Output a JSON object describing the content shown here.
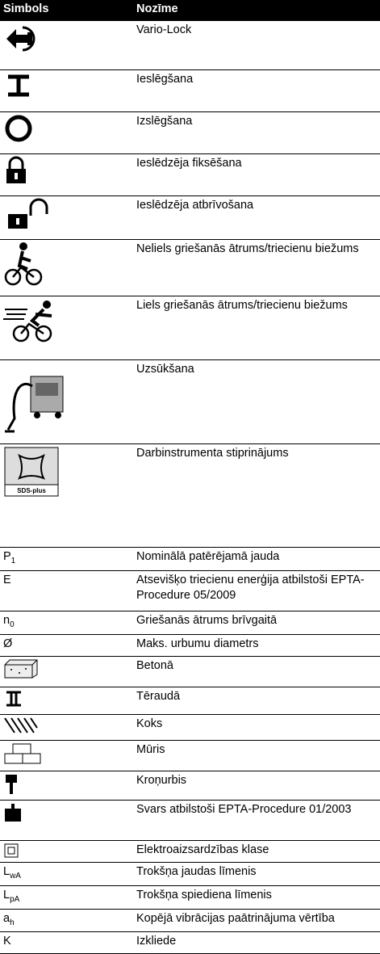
{
  "header": {
    "symbol": "Simbols",
    "meaning": "Nozīme"
  },
  "rows": [
    {
      "meaning": "Vario-Lock"
    },
    {
      "meaning": "Ieslēgšana"
    },
    {
      "meaning": "Izslēgšana"
    },
    {
      "meaning": "Ieslēdzēja fiksēšana"
    },
    {
      "meaning": "Ieslēdzēja atbrīvošana"
    },
    {
      "meaning": "Neliels griešanās ātrums/triecienu biežums"
    },
    {
      "meaning": "Liels griešanās ātrums/triecienu biežums"
    },
    {
      "meaning": "Uzsūkšana"
    },
    {
      "meaning": "Darbinstrumenta stiprinājums",
      "icon_label": "SDS-plus"
    },
    {
      "symbol": "P",
      "sub": "1",
      "meaning": "Nominālā patērējamā jauda"
    },
    {
      "symbol": "E",
      "meaning": "Atsevišķo triecienu enerģija atbilstoši EPTA-Procedure 05/2009"
    },
    {
      "symbol": "n",
      "sub": "0",
      "meaning": "Griešanās ātrums brīvgaitā"
    },
    {
      "symbol": "Ø",
      "meaning": "Maks. urbumu diametrs"
    },
    {
      "meaning": "Betonā"
    },
    {
      "meaning": "Tēraudā"
    },
    {
      "meaning": "Koks"
    },
    {
      "meaning": "Mūris"
    },
    {
      "meaning": "Kroņurbis"
    },
    {
      "meaning": "Svars atbilstoši EPTA-Procedure 01/2003"
    },
    {
      "meaning": "Elektroaizsardzības klase"
    },
    {
      "symbol": "L",
      "sub": "wA",
      "meaning": "Trokšņa jaudas līmenis"
    },
    {
      "symbol": "L",
      "sub": "pA",
      "meaning": "Trokšņa spiediena līmenis"
    },
    {
      "symbol": "a",
      "sub": "h",
      "meaning": "Kopējā vibrācijas paātrinājuma vērtība"
    },
    {
      "symbol": "K",
      "meaning": "Izkliede"
    }
  ]
}
